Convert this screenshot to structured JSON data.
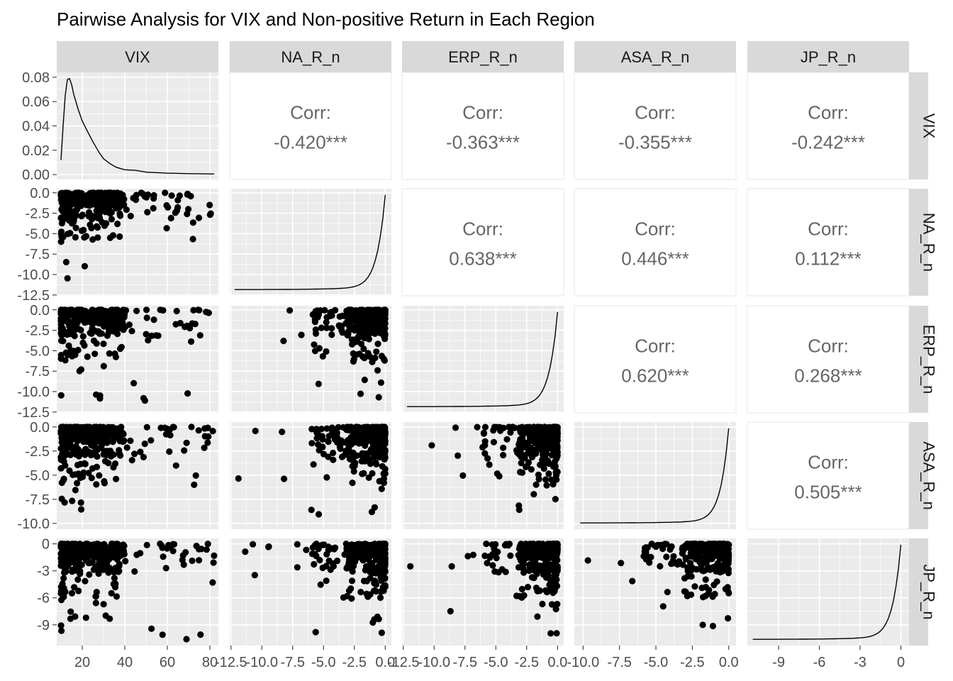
{
  "chart_data": {
    "type": "scatter",
    "title": "Pairwise Analysis for VIX and Non-positive Return in Each Region",
    "variables": [
      "VIX",
      "NA_R_n",
      "ERP_R_n",
      "ASA_R_n",
      "JP_R_n"
    ],
    "correlations": [
      {
        "row": "VIX",
        "col": "NA_R_n",
        "label": "Corr:",
        "value": "-0.420***"
      },
      {
        "row": "VIX",
        "col": "ERP_R_n",
        "label": "Corr:",
        "value": "-0.363***"
      },
      {
        "row": "VIX",
        "col": "ASA_R_n",
        "label": "Corr:",
        "value": "-0.355***"
      },
      {
        "row": "VIX",
        "col": "JP_R_n",
        "label": "Corr:",
        "value": "-0.242***"
      },
      {
        "row": "NA_R_n",
        "col": "ERP_R_n",
        "label": "Corr:",
        "value": "0.638***"
      },
      {
        "row": "NA_R_n",
        "col": "ASA_R_n",
        "label": "Corr:",
        "value": "0.446***"
      },
      {
        "row": "NA_R_n",
        "col": "JP_R_n",
        "label": "Corr:",
        "value": "0.112***"
      },
      {
        "row": "ERP_R_n",
        "col": "ASA_R_n",
        "label": "Corr:",
        "value": "0.620***"
      },
      {
        "row": "ERP_R_n",
        "col": "JP_R_n",
        "label": "Corr:",
        "value": "0.268***"
      },
      {
        "row": "ASA_R_n",
        "col": "JP_R_n",
        "label": "Corr:",
        "value": "0.505***"
      }
    ],
    "axes": {
      "VIX": {
        "range": [
          8,
          84
        ],
        "ticks": [
          20,
          40,
          60,
          80
        ],
        "tick_labels": [
          "20",
          "40",
          "60",
          "80"
        ]
      },
      "NA_R_n": {
        "range": [
          -12.6,
          0.5
        ],
        "ticks": [
          -12.5,
          -10,
          -7.5,
          -5,
          -2.5,
          0
        ],
        "tick_labels": [
          "-12.5",
          "-10.0",
          "-7.5",
          "-5.0",
          "-2.5",
          "0.0"
        ]
      },
      "ERP_R_n": {
        "range": [
          -12.6,
          0.5
        ],
        "ticks": [
          -12.5,
          -10,
          -7.5,
          -5,
          -2.5,
          0
        ],
        "tick_labels": [
          "-12.5",
          "-10.0",
          "-7.5",
          "-5.0",
          "-2.5",
          "0.0"
        ]
      },
      "ASA_R_n": {
        "range": [
          -10.6,
          0.5
        ],
        "ticks": [
          -10,
          -7.5,
          -5,
          -2.5,
          0
        ],
        "tick_labels": [
          "-10.0",
          "-7.5",
          "-5.0",
          "-2.5",
          "0.0"
        ]
      },
      "JP_R_n": {
        "range": [
          -11.3,
          0.6
        ],
        "ticks": [
          -9,
          -6,
          -3,
          0
        ],
        "tick_labels": [
          "-9",
          "-6",
          "-3",
          "0"
        ]
      }
    },
    "density_axis": {
      "range": [
        -0.004,
        0.084
      ],
      "ticks": [
        0,
        0.02,
        0.04,
        0.06,
        0.08
      ],
      "tick_labels": [
        "0.00",
        "0.02",
        "0.04",
        "0.06",
        "0.08"
      ]
    },
    "densities": {
      "VIX": {
        "x": [
          10,
          11,
          12,
          13,
          14,
          15,
          16,
          18,
          20,
          22,
          25,
          28,
          30,
          33,
          36,
          40,
          45,
          50,
          60,
          70,
          82
        ],
        "y": [
          0.012,
          0.04,
          0.065,
          0.078,
          0.079,
          0.074,
          0.066,
          0.054,
          0.044,
          0.037,
          0.027,
          0.018,
          0.013,
          0.009,
          0.006,
          0.004,
          0.0035,
          0.002,
          0.0012,
          0.0008,
          0.0005
        ]
      }
    },
    "grid": true,
    "legend": "none"
  }
}
